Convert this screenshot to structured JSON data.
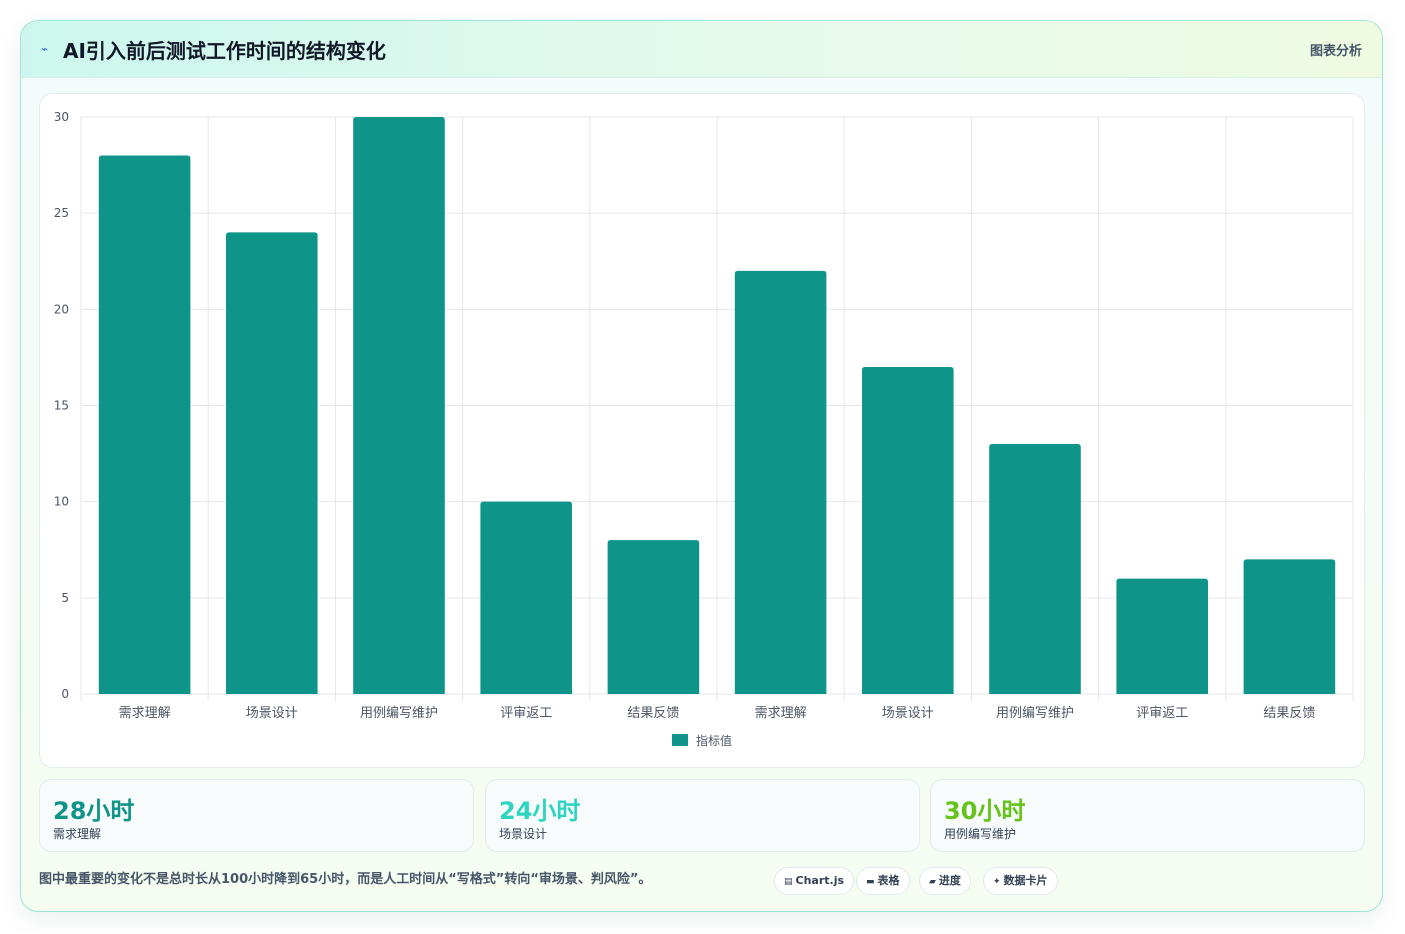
{
  "header": {
    "title": "AI引入前后测试工作时间的结构变化",
    "tag": "图表分析",
    "icon": "sparkle-icon"
  },
  "chart_data": {
    "type": "bar",
    "categories": [
      "需求理解",
      "场景设计",
      "用例编写维护",
      "评审返工",
      "结果反馈",
      "需求理解",
      "场景设计",
      "用例编写维护",
      "评审返工",
      "结果反馈"
    ],
    "series": [
      {
        "name": "指标值",
        "values": [
          28,
          24,
          30,
          10,
          8,
          22,
          17,
          13,
          6,
          7
        ],
        "color": "#0e9488"
      }
    ],
    "yticks": [
      0,
      5,
      10,
      15,
      20,
      25,
      30
    ],
    "ylim": [
      0,
      30
    ],
    "grid": true,
    "legend": "bottom"
  },
  "stats": [
    {
      "value": "28小时",
      "label": "需求理解",
      "color": "#0e9488"
    },
    {
      "value": "24小时",
      "label": "场景设计",
      "color": "#2dd4bf"
    },
    {
      "value": "30小时",
      "label": "用例编写维护",
      "color": "#65c31b"
    }
  ],
  "note": "图中最重要的变化不是总时长从100小时降到65小时，而是人工时间从“写格式”转向“审场景、判风险”。",
  "chips": [
    {
      "icon": "chart-icon",
      "glyph": "▤",
      "label": "Chart.js"
    },
    {
      "icon": "table-icon",
      "glyph": "▬",
      "label": "表格"
    },
    {
      "icon": "progress-icon",
      "glyph": "▰",
      "label": "进度"
    },
    {
      "icon": "card-icon",
      "glyph": "✦",
      "label": "数据卡片"
    }
  ]
}
